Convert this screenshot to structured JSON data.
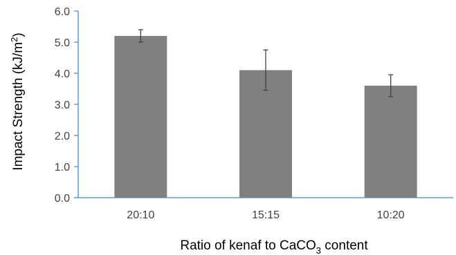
{
  "chart_data": {
    "type": "bar",
    "categories": [
      "20:10",
      "15:15",
      "10:20"
    ],
    "values": [
      5.2,
      4.1,
      3.6
    ],
    "error": [
      0.2,
      0.65,
      0.35
    ],
    "xlabel": "Ratio of kenaf to CaCO3 content",
    "xlabel_parts": {
      "pre": "Ratio of kenaf to CaCO",
      "sub": "3",
      "post": " content"
    },
    "ylabel": "Impact Strength (kJ/m2)",
    "ylabel_parts": {
      "pre": "Impact Strength (kJ/m",
      "sup": "2",
      "post": ")"
    },
    "ylim": [
      0,
      6
    ],
    "yticks": [
      "0.0",
      "1.0",
      "2.0",
      "3.0",
      "4.0",
      "5.0",
      "6.0"
    ],
    "grid": false,
    "legend": "none",
    "colors": {
      "bar": "#808080",
      "axis": "#5b9bd5",
      "error": "#404040",
      "text": "#404040"
    }
  }
}
